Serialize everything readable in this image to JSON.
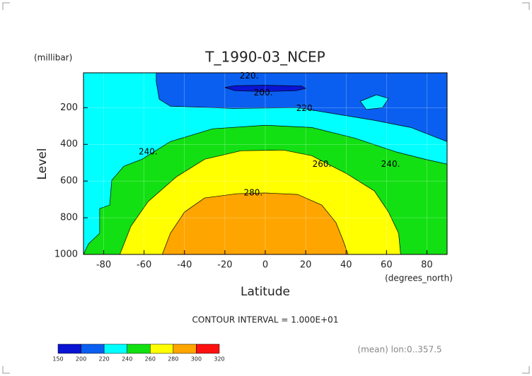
{
  "chart_data": {
    "type": "contour",
    "title": "T_1990-03_NCEP",
    "x_label": "Latitude",
    "x_units": "(degrees_north)",
    "y_label": "Level",
    "y_units": "(millibar)",
    "xlim": [
      -90,
      90
    ],
    "xticks": [
      -80,
      -60,
      -40,
      -20,
      0,
      20,
      40,
      60,
      80
    ],
    "ylim": [
      1000,
      10
    ],
    "yticks": [
      200,
      400,
      600,
      800,
      1000
    ],
    "colorbar": {
      "levels": [
        150,
        200,
        220,
        240,
        260,
        280,
        300,
        320
      ],
      "colors": [
        "#0a14d2",
        "#0a5ff0",
        "#00ffff",
        "#12e012",
        "#ffff00",
        "#ffa500",
        "#ff1010"
      ]
    },
    "regions": [
      {
        "band": 2,
        "x": [
          -90,
          90,
          90,
          -90
        ],
        "y": [
          10,
          10,
          1000,
          1000
        ]
      },
      {
        "band": 1,
        "x": [
          -54,
          -54,
          -52.5,
          -47,
          -16,
          16,
          33,
          54,
          72,
          90,
          90
        ],
        "y": [
          10,
          58,
          154,
          192,
          204,
          200,
          231,
          269,
          308,
          385,
          10
        ]
      },
      {
        "band": 2,
        "x": [
          47,
          55,
          61,
          58,
          50
        ],
        "y": [
          165,
          130,
          150,
          200,
          210
        ]
      },
      {
        "band": 0,
        "x": [
          -20,
          -15,
          0,
          18,
          20,
          15,
          0,
          -15
        ],
        "y": [
          90,
          80,
          78,
          82,
          95,
          108,
          112,
          108
        ]
      },
      {
        "band": 3,
        "x": [
          -90,
          -87.5,
          -82,
          -82,
          -77,
          -76,
          -70,
          -61,
          -47,
          -26,
          0,
          23,
          44,
          65,
          79,
          90,
          90
        ],
        "y": [
          1000,
          942,
          885,
          750,
          731,
          596,
          519,
          481,
          385,
          315,
          296,
          308,
          365,
          442,
          481,
          508,
          1000
        ]
      },
      {
        "band": 4,
        "x": [
          -72,
          -66.5,
          -58,
          -44,
          -30,
          -12,
          9,
          23,
          40,
          54,
          61,
          66,
          67
        ],
        "y": [
          1000,
          846,
          712,
          577,
          481,
          435,
          431,
          462,
          558,
          654,
          769,
          885,
          1000
        ]
      },
      {
        "band": 5,
        "x": [
          -51,
          -47,
          -40,
          -30,
          -14,
          0,
          16,
          28,
          35,
          38.5,
          41
        ],
        "y": [
          1000,
          885,
          769,
          692,
          669,
          665,
          673,
          731,
          827,
          923,
          1000
        ]
      }
    ],
    "contour_labels": [
      {
        "value": 220,
        "label": "220.",
        "x": -8,
        "y": 27
      },
      {
        "value": 200,
        "label": "200.",
        "x": -1,
        "y": 119
      },
      {
        "value": 220,
        "label": "220.",
        "x": 20,
        "y": 204
      },
      {
        "value": 240,
        "label": "240.",
        "x": -58,
        "y": 442
      },
      {
        "value": 260,
        "label": "260.",
        "x": 28,
        "y": 508
      },
      {
        "value": 240,
        "label": "240.",
        "x": 62,
        "y": 508
      },
      {
        "value": 280,
        "label": "280.",
        "x": -6,
        "y": 665
      }
    ],
    "annotations": [
      "CONTOUR INTERVAL = 1.000E+01",
      "(mean) lon:0..357.5"
    ]
  }
}
